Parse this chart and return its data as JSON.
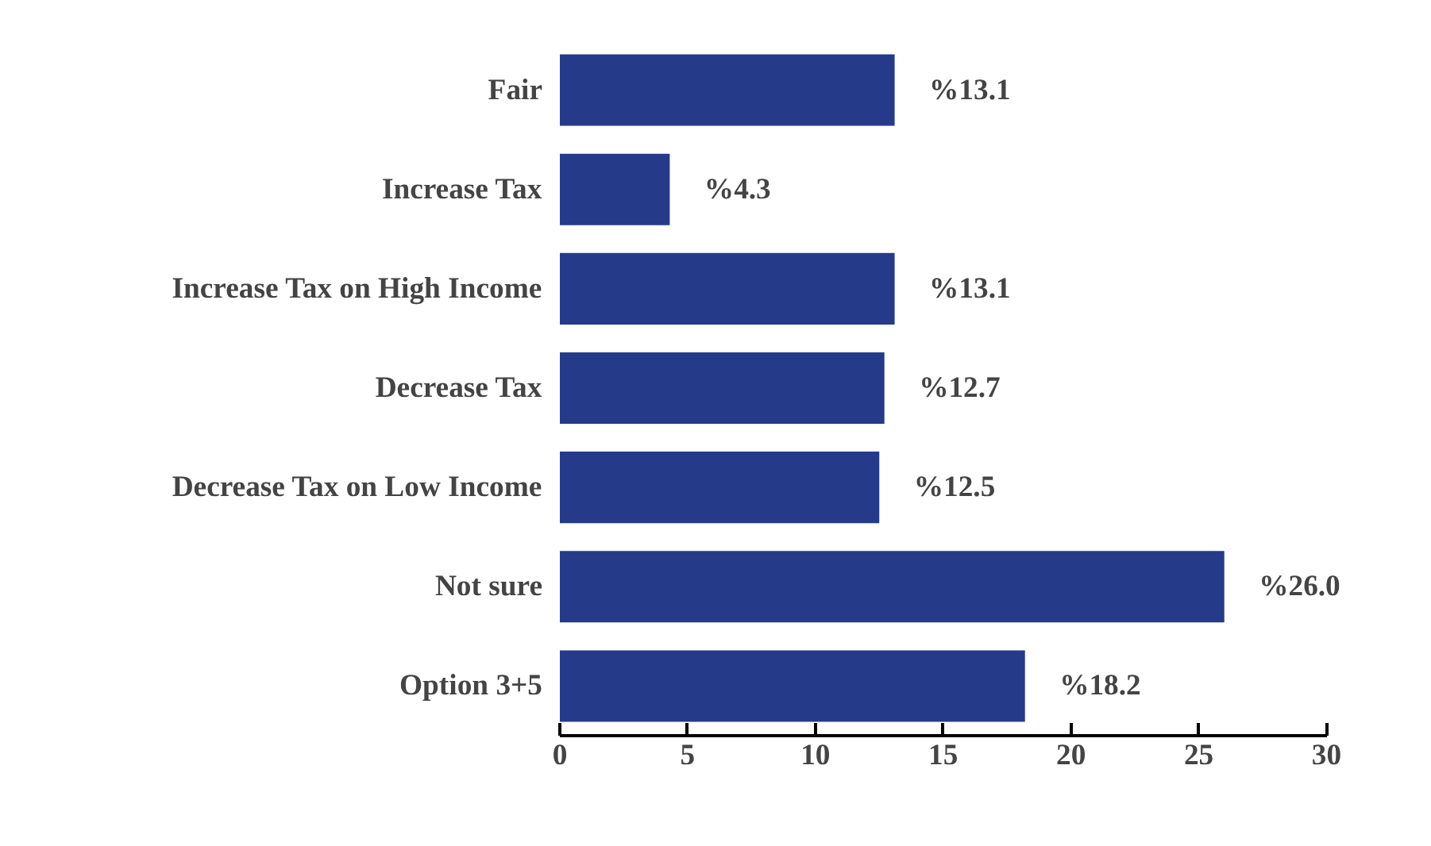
{
  "chart_data": {
    "type": "bar",
    "orientation": "horizontal",
    "categories": [
      "Fair",
      "Increase Tax",
      "Increase Tax on High Income",
      "Decrease Tax",
      "Decrease Tax on Low Income",
      "Not sure",
      "Option 3+5"
    ],
    "values": [
      13.1,
      4.3,
      13.1,
      12.7,
      12.5,
      26.0,
      18.2
    ],
    "value_labels": [
      "%13.1",
      "%4.3",
      "%13.1",
      "%12.7",
      "%12.5",
      "%26.0",
      "%18.2"
    ],
    "color": "#253b8a",
    "xlim": [
      0,
      30
    ],
    "xticks": [
      0,
      5,
      10,
      15,
      20,
      25,
      30
    ],
    "grid": false
  }
}
